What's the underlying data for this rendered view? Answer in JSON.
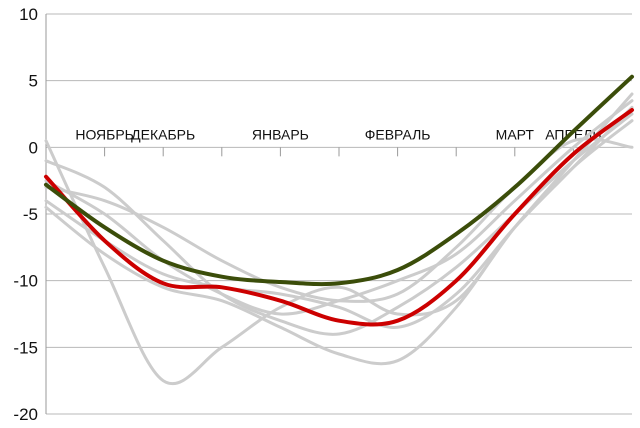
{
  "chart_data": {
    "type": "line",
    "title": "",
    "xlabel": "",
    "ylabel": "",
    "ylim": [
      -20,
      10
    ],
    "yticks": [
      10,
      5,
      0,
      -5,
      -10,
      -15,
      -20
    ],
    "xlim": [
      0,
      1
    ],
    "categories": [
      "НОЯБРЬ",
      "ДЕКАБРЬ",
      "ЯНВАРЬ",
      "ФЕВРАЛЬ",
      "МАРТ",
      "АПРЕЛЬ"
    ],
    "category_positions": [
      0.1,
      0.2,
      0.4,
      0.6,
      0.8,
      0.9
    ],
    "grid": true,
    "legend": "none",
    "series": [
      {
        "color": "#cccccc",
        "width": 3,
        "x": [
          0,
          0.1,
          0.2,
          0.3,
          0.4,
          0.5,
          0.6,
          0.7,
          0.8,
          0.9,
          1
        ],
        "y": [
          0.5,
          -9,
          -17.5,
          -15,
          -12,
          -10.5,
          -12.5,
          -11.5,
          -6,
          -1,
          4
        ]
      },
      {
        "color": "#cccccc",
        "width": 3,
        "x": [
          0,
          0.1,
          0.2,
          0.3,
          0.4,
          0.5,
          0.6,
          0.7,
          0.8,
          0.9,
          1
        ],
        "y": [
          -1,
          -3,
          -7,
          -11,
          -13,
          -14,
          -12,
          -9,
          -5,
          -1,
          2.5
        ]
      },
      {
        "color": "#cccccc",
        "width": 3,
        "x": [
          0,
          0.1,
          0.2,
          0.3,
          0.4,
          0.5,
          0.6,
          0.7,
          0.8,
          0.9,
          1
        ],
        "y": [
          -2.5,
          -5,
          -8.5,
          -11,
          -12.5,
          -11.5,
          -10,
          -8,
          -4,
          0,
          3.5
        ]
      },
      {
        "color": "#cccccc",
        "width": 3,
        "x": [
          0,
          0.1,
          0.2,
          0.3,
          0.4,
          0.5,
          0.6,
          0.7,
          0.8,
          0.9,
          1
        ],
        "y": [
          -4.5,
          -8,
          -10.5,
          -11.5,
          -13.5,
          -15.5,
          -16,
          -12,
          -6,
          -1.5,
          2
        ]
      },
      {
        "color": "#cccccc",
        "width": 3,
        "x": [
          0,
          0.1,
          0.2,
          0.3,
          0.4,
          0.5,
          0.6,
          0.7,
          0.8,
          0.9,
          1
        ],
        "y": [
          -4,
          -7,
          -9.5,
          -10.5,
          -11,
          -12,
          -13.5,
          -11,
          -6,
          -1.5,
          3
        ]
      },
      {
        "color": "#cccccc",
        "width": 3,
        "x": [
          0,
          0.1,
          0.2,
          0.3,
          0.4,
          0.5,
          0.6,
          0.7,
          0.8,
          0.9,
          1
        ],
        "y": [
          -3,
          -4,
          -6,
          -8.5,
          -10.5,
          -11.5,
          -11,
          -7.5,
          -3,
          0.5,
          0
        ]
      },
      {
        "color": "#cc0000",
        "width": 4,
        "x": [
          0,
          0.1,
          0.2,
          0.3,
          0.4,
          0.5,
          0.6,
          0.7,
          0.8,
          0.9,
          1
        ],
        "y": [
          -2.2,
          -7,
          -10.2,
          -10.5,
          -11.5,
          -13,
          -13,
          -10,
          -5,
          -0.5,
          2.8
        ]
      },
      {
        "color": "#3b4d0a",
        "width": 4,
        "x": [
          0,
          0.1,
          0.2,
          0.3,
          0.4,
          0.5,
          0.6,
          0.7,
          0.8,
          0.9,
          1
        ],
        "y": [
          -2.8,
          -6,
          -8.5,
          -9.7,
          -10.1,
          -10.2,
          -9.2,
          -6.5,
          -3,
          1.2,
          5.3
        ]
      }
    ]
  }
}
